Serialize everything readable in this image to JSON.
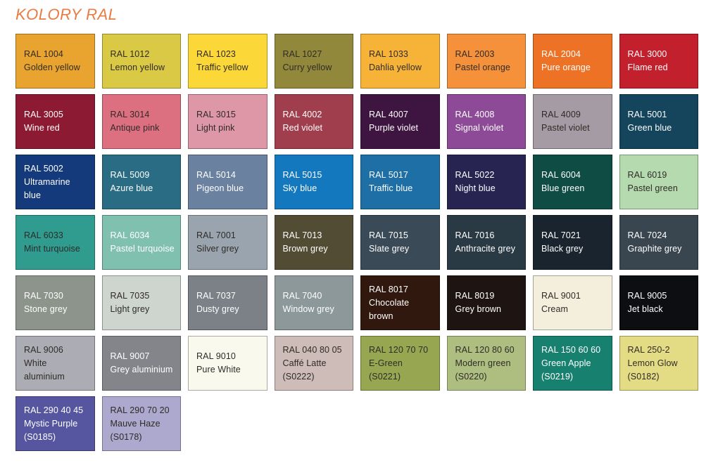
{
  "title": "KOLORY RAL",
  "accent_color": "#EA7B42",
  "text_colors": {
    "dark": "#2F2B27",
    "light": "#FFFFFF"
  },
  "swatches": [
    {
      "code": "RAL 1004",
      "name": "Golden yellow",
      "sub": "",
      "bg": "#E9A42F",
      "text": "dark"
    },
    {
      "code": "RAL 1012",
      "name": "Lemon yellow",
      "sub": "",
      "bg": "#D9C945",
      "text": "dark"
    },
    {
      "code": "RAL 1023",
      "name": "Traffic yellow",
      "sub": "",
      "bg": "#FBD737",
      "text": "dark"
    },
    {
      "code": "RAL 1027",
      "name": "Curry yellow",
      "sub": "",
      "bg": "#92883B",
      "text": "dark"
    },
    {
      "code": "RAL 1033",
      "name": "Dahlia yellow",
      "sub": "",
      "bg": "#F6B337",
      "text": "dark"
    },
    {
      "code": "RAL 2003",
      "name": "Pastel orange",
      "sub": "",
      "bg": "#F5913B",
      "text": "dark"
    },
    {
      "code": "RAL 2004",
      "name": "Pure orange",
      "sub": "",
      "bg": "#EE7226",
      "text": "light"
    },
    {
      "code": "RAL 3000",
      "name": "Flame red",
      "sub": "",
      "bg": "#C2202C",
      "text": "light"
    },
    {
      "code": "RAL 3005",
      "name": "Wine red",
      "sub": "",
      "bg": "#8D1A33",
      "text": "light"
    },
    {
      "code": "RAL 3014",
      "name": "Antique pink",
      "sub": "",
      "bg": "#DC7080",
      "text": "dark"
    },
    {
      "code": "RAL 3015",
      "name": "Light pink",
      "sub": "",
      "bg": "#DE97A7",
      "text": "dark"
    },
    {
      "code": "RAL 4002",
      "name": "Red violet",
      "sub": "",
      "bg": "#A13E4D",
      "text": "light"
    },
    {
      "code": "RAL 4007",
      "name": "Purple violet",
      "sub": "",
      "bg": "#3E1540",
      "text": "light"
    },
    {
      "code": "RAL 4008",
      "name": "Signal violet",
      "sub": "",
      "bg": "#8C4A97",
      "text": "light"
    },
    {
      "code": "RAL 4009",
      "name": "Pastel violet",
      "sub": "",
      "bg": "#A49BA4",
      "text": "dark"
    },
    {
      "code": "RAL 5001",
      "name": "Green blue",
      "sub": "",
      "bg": "#14455C",
      "text": "light"
    },
    {
      "code": "RAL 5002",
      "name": "Ultramarine\nblue",
      "sub": "",
      "bg": "#143A7B",
      "text": "light"
    },
    {
      "code": "RAL 5009",
      "name": "Azure blue",
      "sub": "",
      "bg": "#2A6C84",
      "text": "light"
    },
    {
      "code": "RAL 5014",
      "name": "Pigeon blue",
      "sub": "",
      "bg": "#6B81A0",
      "text": "light"
    },
    {
      "code": "RAL 5015",
      "name": "Sky blue",
      "sub": "",
      "bg": "#1478BE",
      "text": "light"
    },
    {
      "code": "RAL 5017",
      "name": "Traffic blue",
      "sub": "",
      "bg": "#1D6FA5",
      "text": "light"
    },
    {
      "code": "RAL 5022",
      "name": "Night blue",
      "sub": "",
      "bg": "#282452",
      "text": "light"
    },
    {
      "code": "RAL 6004",
      "name": "Blue green",
      "sub": "",
      "bg": "#0E4C44",
      "text": "light"
    },
    {
      "code": "RAL 6019",
      "name": "Pastel green",
      "sub": "",
      "bg": "#B5DAAF",
      "text": "dark"
    },
    {
      "code": "RAL 6033",
      "name": "Mint turquoise",
      "sub": "",
      "bg": "#2F9C8F",
      "text": "dark"
    },
    {
      "code": "RAL 6034",
      "name": "Pastel turquoise",
      "sub": "",
      "bg": "#80C0AF",
      "text": "light"
    },
    {
      "code": "RAL 7001",
      "name": "Silver grey",
      "sub": "",
      "bg": "#9AA4AE",
      "text": "dark"
    },
    {
      "code": "RAL 7013",
      "name": "Brown grey",
      "sub": "",
      "bg": "#534C35",
      "text": "light"
    },
    {
      "code": "RAL 7015",
      "name": "Slate grey",
      "sub": "",
      "bg": "#3A4A57",
      "text": "light"
    },
    {
      "code": "RAL 7016",
      "name": "Anthracite grey",
      "sub": "",
      "bg": "#2A3A44",
      "text": "light"
    },
    {
      "code": "RAL 7021",
      "name": "Black grey",
      "sub": "",
      "bg": "#19242E",
      "text": "light"
    },
    {
      "code": "RAL 7024",
      "name": "Graphite grey",
      "sub": "",
      "bg": "#39464F",
      "text": "light"
    },
    {
      "code": "RAL 7030",
      "name": "Stone grey",
      "sub": "",
      "bg": "#8D948C",
      "text": "light"
    },
    {
      "code": "RAL 7035",
      "name": "Light grey",
      "sub": "",
      "bg": "#CDD5CE",
      "text": "dark"
    },
    {
      "code": "RAL 7037",
      "name": "Dusty grey",
      "sub": "",
      "bg": "#7B8187",
      "text": "light"
    },
    {
      "code": "RAL 7040",
      "name": "Window grey",
      "sub": "",
      "bg": "#8C9899",
      "text": "light"
    },
    {
      "code": "RAL 8017",
      "name": "Chocolate\nbrown",
      "sub": "",
      "bg": "#31180F",
      "text": "light"
    },
    {
      "code": "RAL 8019",
      "name": "Grey brown",
      "sub": "",
      "bg": "#1E1512",
      "text": "light"
    },
    {
      "code": "RAL 9001",
      "name": "Cream",
      "sub": "",
      "bg": "#F3EFDC",
      "text": "dark"
    },
    {
      "code": "RAL 9005",
      "name": "Jet black",
      "sub": "",
      "bg": "#0C0E11",
      "text": "light"
    },
    {
      "code": "RAL 9006",
      "name": "White\naluminium",
      "sub": "",
      "bg": "#ABACB4",
      "text": "dark"
    },
    {
      "code": "RAL 9007",
      "name": "Grey aluminium",
      "sub": "",
      "bg": "#84858B",
      "text": "light"
    },
    {
      "code": "RAL 9010",
      "name": "Pure White",
      "sub": "",
      "bg": "#FAF9EE",
      "text": "dark"
    },
    {
      "code": "RAL 040 80 05",
      "name": "Caffé Latte",
      "sub": "(S0222)",
      "bg": "#CDBCB7",
      "text": "dark"
    },
    {
      "code": "RAL 120 70 70",
      "name": "E-Green",
      "sub": "(S0221)",
      "bg": "#97A751",
      "text": "dark"
    },
    {
      "code": "RAL 120 80 60",
      "name": "Modern green",
      "sub": "(S0220)",
      "bg": "#ADBE80",
      "text": "dark"
    },
    {
      "code": "RAL 150 60 60",
      "name": "Green Apple",
      "sub": "(S0219)",
      "bg": "#17806E",
      "text": "light"
    },
    {
      "code": "RAL 250-2",
      "name": "Lemon Glow",
      "sub": "(S0182)",
      "bg": "#E4DC85",
      "text": "dark"
    },
    {
      "code": "RAL 290 40 45",
      "name": "Mystic Purple",
      "sub": "(S0185)",
      "bg": "#5655A0",
      "text": "light"
    },
    {
      "code": "RAL 290 70 20",
      "name": "Mauve Haze",
      "sub": "(S0178)",
      "bg": "#ACA8CE",
      "text": "dark"
    }
  ]
}
